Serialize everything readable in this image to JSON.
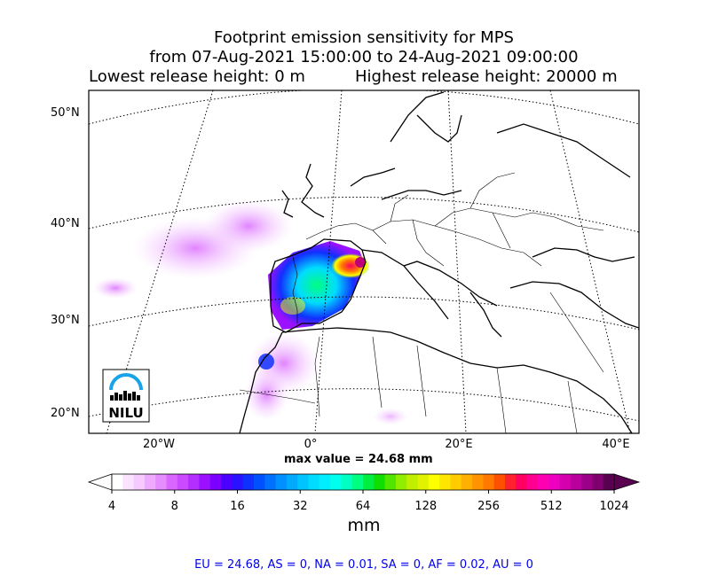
{
  "title": {
    "line1": "Footprint emission sensitivity for MPS",
    "line2": "from 07-Aug-2021 15:00:00 to 24-Aug-2021 09:00:00",
    "line3_left": "Lowest release height: 0 m",
    "line3_right": "Highest release height: 20000 m"
  },
  "map": {
    "lat_labels": [
      "50°N",
      "40°N",
      "30°N",
      "20°N"
    ],
    "lon_labels": [
      "20°W",
      "0°",
      "20°E",
      "40°E"
    ],
    "logo_text": "NILU",
    "grid_style": "dotted",
    "projection": "polar stereographic"
  },
  "max_value": "max value = 24.68 mm",
  "colorbar": {
    "ticks": [
      "4",
      "8",
      "16",
      "32",
      "64",
      "128",
      "256",
      "512",
      "1024"
    ],
    "unit": "mm",
    "scale": "log",
    "colors": [
      "#ffffff",
      "#fbe3ff",
      "#f6c9ff",
      "#efaaff",
      "#e58cff",
      "#d966ff",
      "#c94aff",
      "#b32eff",
      "#9a10ff",
      "#7a00ff",
      "#4c00ff",
      "#2a12ff",
      "#1030ff",
      "#0050ff",
      "#0070ff",
      "#0090ff",
      "#00aaff",
      "#00c4ff",
      "#00dcff",
      "#00eeff",
      "#00ffee",
      "#00ffc0",
      "#00ff80",
      "#00ee40",
      "#10dd00",
      "#50e600",
      "#90ee00",
      "#c0f000",
      "#e0f200",
      "#ffff00",
      "#ffe600",
      "#ffcc00",
      "#ffb000",
      "#ff9400",
      "#ff7800",
      "#ff5000",
      "#ff2030",
      "#ff0060",
      "#ff0090",
      "#ff00b0",
      "#ee00c0",
      "#d400b0",
      "#b8009c",
      "#9c0088",
      "#800070",
      "#5a0050"
    ]
  },
  "region_stats": "EU = 24.68,  AS = 0,  NA = 0.01,  SA = 0,  AF = 0.02,  AU = 0"
}
